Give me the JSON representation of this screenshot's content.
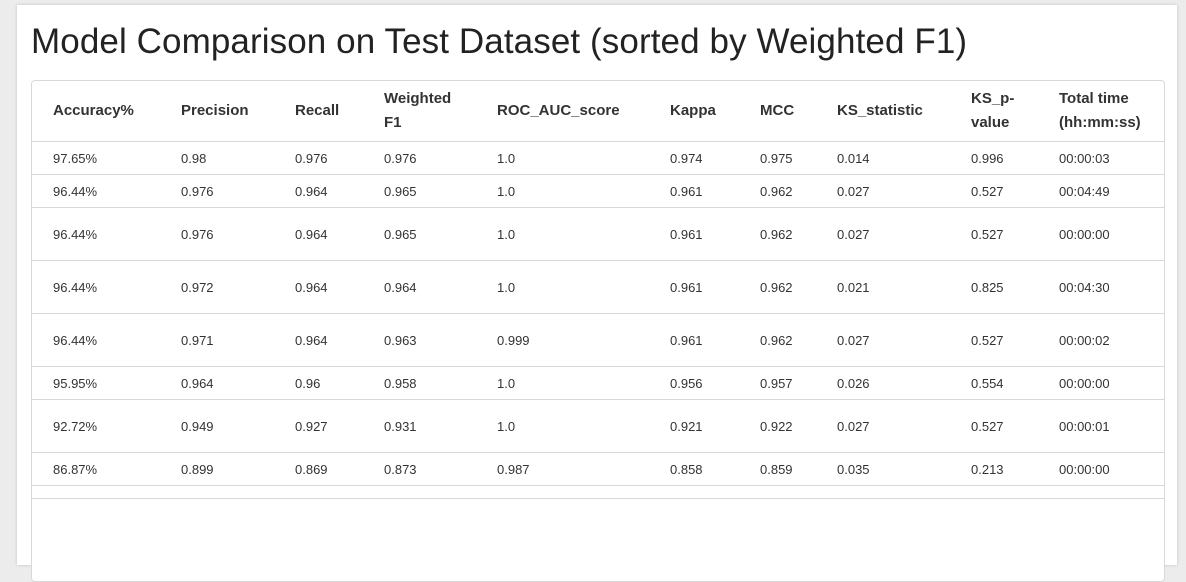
{
  "title": "Model Comparison on Test Dataset (sorted by Weighted F1)",
  "columns": [
    [
      "Accuracy%"
    ],
    [
      "Precision"
    ],
    [
      "Recall"
    ],
    [
      "Weighted",
      "F1"
    ],
    [
      "ROC_AUC_score"
    ],
    [
      "Kappa"
    ],
    [
      "MCC"
    ],
    [
      "KS_statistic"
    ],
    [
      "KS_p-",
      "value"
    ],
    [
      "Total time",
      "(hh:mm:ss)"
    ]
  ],
  "rows": [
    [
      "97.65%",
      "0.98",
      "0.976",
      "0.976",
      "1.0",
      "0.974",
      "0.975",
      "0.014",
      "0.996",
      "00:00:03"
    ],
    [
      "96.44%",
      "0.976",
      "0.964",
      "0.965",
      "1.0",
      "0.961",
      "0.962",
      "0.027",
      "0.527",
      "00:04:49"
    ],
    [
      "96.44%",
      "0.976",
      "0.964",
      "0.965",
      "1.0",
      "0.961",
      "0.962",
      "0.027",
      "0.527",
      "00:00:00"
    ],
    [
      "96.44%",
      "0.972",
      "0.964",
      "0.964",
      "1.0",
      "0.961",
      "0.962",
      "0.021",
      "0.825",
      "00:04:30"
    ],
    [
      "96.44%",
      "0.971",
      "0.964",
      "0.963",
      "0.999",
      "0.961",
      "0.962",
      "0.027",
      "0.527",
      "00:00:02"
    ],
    [
      "95.95%",
      "0.964",
      "0.96",
      "0.958",
      "1.0",
      "0.956",
      "0.957",
      "0.026",
      "0.554",
      "00:00:00"
    ],
    [
      "92.72%",
      "0.949",
      "0.927",
      "0.931",
      "1.0",
      "0.921",
      "0.922",
      "0.027",
      "0.527",
      "00:00:01"
    ],
    [
      "86.87%",
      "0.899",
      "0.869",
      "0.873",
      "0.987",
      "0.858",
      "0.859",
      "0.035",
      "0.213",
      "00:00:00"
    ]
  ]
}
